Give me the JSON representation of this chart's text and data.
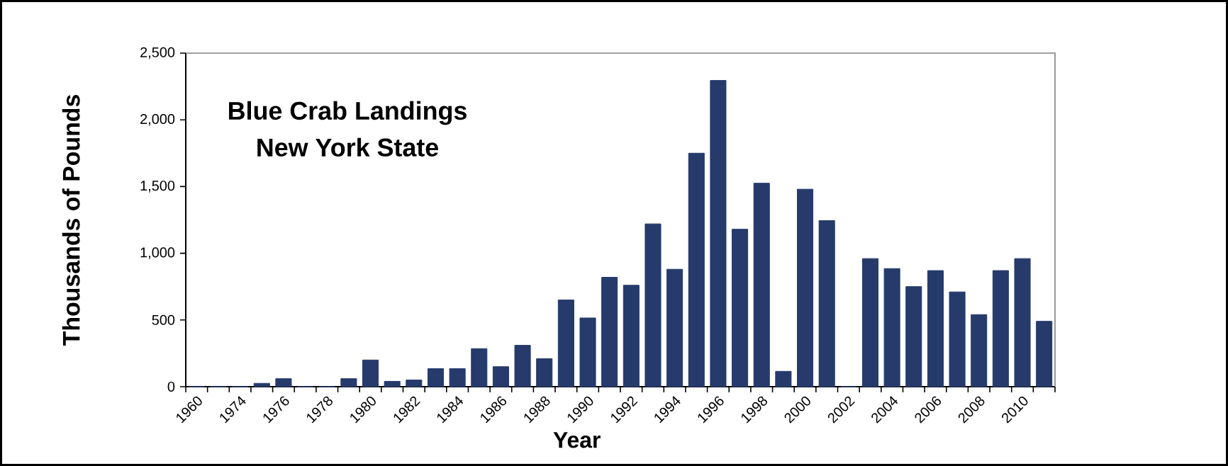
{
  "chart_data": {
    "type": "bar",
    "title": "Blue Crab Landings",
    "subtitle": "New York State",
    "xlabel": "Year",
    "ylabel": "Thousands of Pounds",
    "categories": [
      "1960",
      null,
      "1974",
      null,
      "1976",
      null,
      "1978",
      null,
      "1980",
      null,
      "1982",
      null,
      "1984",
      null,
      "1986",
      null,
      "1988",
      null,
      "1990",
      null,
      "1992",
      null,
      "1994",
      null,
      "1996",
      null,
      "1998",
      null,
      "2000",
      null,
      "2002",
      null,
      "2004",
      null,
      "2006",
      null,
      "2008",
      null,
      "2010",
      null
    ],
    "values": [
      0,
      0,
      0,
      25,
      60,
      0,
      0,
      60,
      200,
      40,
      50,
      135,
      135,
      285,
      150,
      310,
      210,
      650,
      515,
      820,
      760,
      1220,
      880,
      1750,
      2295,
      1180,
      1525,
      115,
      1480,
      1245,
      0,
      960,
      885,
      750,
      870,
      710,
      540,
      870,
      960,
      490
    ],
    "color": "#263a6b",
    "ylim": [
      0,
      2500
    ],
    "yticks": [
      0,
      500,
      {
        "value": 1000,
        "label": "1,000"
      },
      {
        "value": 1500,
        "label": "1,500"
      },
      {
        "value": 2000,
        "label": "2,000"
      },
      {
        "value": 2500,
        "label": "2,500"
      }
    ]
  }
}
